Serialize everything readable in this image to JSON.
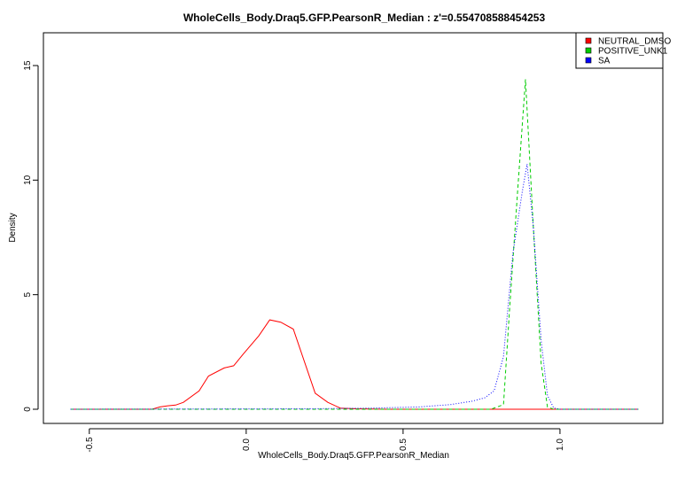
{
  "chart_data": {
    "type": "line",
    "title": "WholeCells_Body.Draq5.GFP.PearsonR_Median : z'=0.554708588454253",
    "xlabel": "WholeCells_Body.Draq5.GFP.PearsonR_Median",
    "ylabel": "Density",
    "xlim": [
      -0.57,
      1.26
    ],
    "ylim": [
      0,
      16.5
    ],
    "x_ticks": [
      -0.5,
      0.0,
      0.5,
      1.0
    ],
    "x_tick_labels": [
      "-0.5",
      "0.0",
      "0.5",
      "1.0"
    ],
    "y_ticks": [
      0,
      5,
      10,
      15
    ],
    "y_tick_labels": [
      "0",
      "5",
      "10",
      "15"
    ],
    "legend_position": "top-right",
    "series": [
      {
        "name": "NEUTRAL_DMSO",
        "color": "#ff0000",
        "style": "solid",
        "points": [
          [
            -0.56,
            0
          ],
          [
            -0.3,
            0
          ],
          [
            -0.275,
            0.1
          ],
          [
            -0.25,
            0.15
          ],
          [
            -0.225,
            0.18
          ],
          [
            -0.2,
            0.3
          ],
          [
            -0.15,
            0.8
          ],
          [
            -0.12,
            1.45
          ],
          [
            -0.07,
            1.8
          ],
          [
            -0.04,
            1.9
          ],
          [
            -0.01,
            2.4
          ],
          [
            0.04,
            3.2
          ],
          [
            0.075,
            3.9
          ],
          [
            0.11,
            3.8
          ],
          [
            0.15,
            3.5
          ],
          [
            0.22,
            0.7
          ],
          [
            0.26,
            0.3
          ],
          [
            0.3,
            0.05
          ],
          [
            0.35,
            0.02
          ],
          [
            0.45,
            0
          ],
          [
            1.25,
            0
          ]
        ]
      },
      {
        "name": "POSITIVE_UNK1",
        "color": "#00cc00",
        "style": "dashed",
        "points": [
          [
            -0.56,
            0
          ],
          [
            0.78,
            0
          ],
          [
            0.82,
            0.2
          ],
          [
            0.84,
            4.5
          ],
          [
            0.865,
            9.5
          ],
          [
            0.89,
            14.4
          ],
          [
            0.915,
            8.0
          ],
          [
            0.94,
            2.0
          ],
          [
            0.96,
            0.1
          ],
          [
            0.98,
            0
          ],
          [
            1.25,
            0
          ]
        ]
      },
      {
        "name": "SA",
        "color": "#0000ff",
        "style": "dotted",
        "points": [
          [
            -0.56,
            0
          ],
          [
            0.2,
            0.02
          ],
          [
            0.4,
            0.05
          ],
          [
            0.55,
            0.1
          ],
          [
            0.65,
            0.2
          ],
          [
            0.72,
            0.35
          ],
          [
            0.76,
            0.5
          ],
          [
            0.79,
            0.8
          ],
          [
            0.82,
            2.3
          ],
          [
            0.85,
            6.8
          ],
          [
            0.88,
            9.5
          ],
          [
            0.895,
            10.7
          ],
          [
            0.915,
            8.0
          ],
          [
            0.94,
            3.0
          ],
          [
            0.96,
            0.6
          ],
          [
            0.98,
            0.05
          ],
          [
            1.0,
            0
          ],
          [
            1.25,
            0
          ]
        ]
      }
    ]
  }
}
